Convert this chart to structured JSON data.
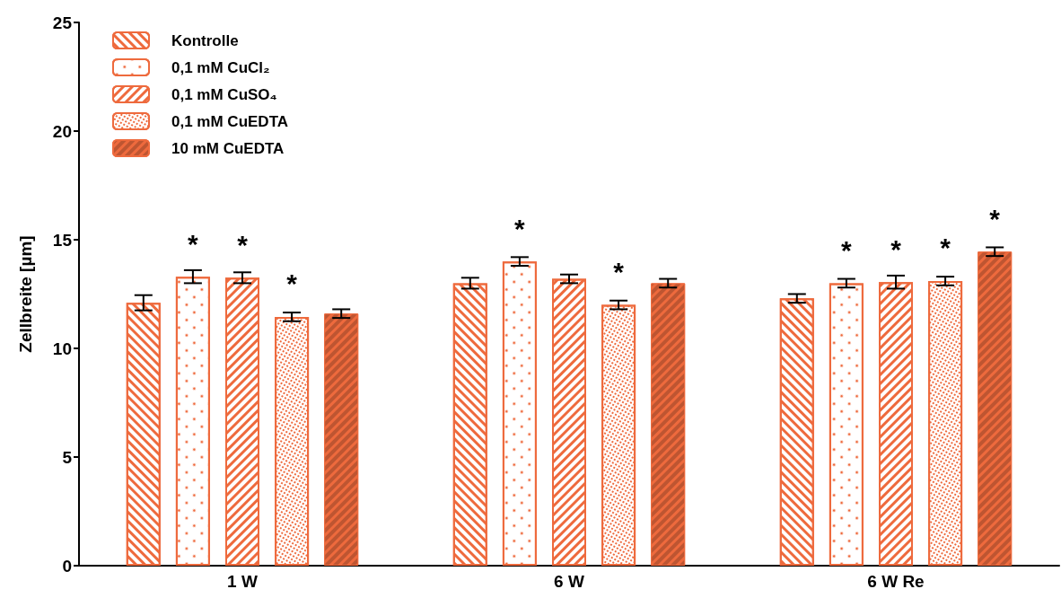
{
  "chart_data": {
    "type": "bar",
    "ylabel": "Zellbreite [µm]",
    "categories": [
      "1 W",
      "6 W",
      "6 W Re"
    ],
    "ylim": [
      0,
      25
    ],
    "yticks": [
      0,
      5,
      10,
      15,
      20,
      25
    ],
    "grid": false,
    "legend": "top left",
    "series": [
      {
        "name": "Kontrolle",
        "color": "#ee6a3d",
        "values": [
          12.1,
          13.0,
          12.3
        ],
        "errors": [
          0.35,
          0.25,
          0.2
        ],
        "value_labels": [
          null,
          null,
          null
        ]
      },
      {
        "name": "0,1 mM CuCl₂",
        "color": "#ee6a3d",
        "values": [
          13.3,
          14.0,
          13.0
        ],
        "errors": [
          0.3,
          0.2,
          0.2
        ],
        "value_labels": [
          "*",
          "*",
          "*"
        ]
      },
      {
        "name": "0,1 mM CuSO₄",
        "color": "#ee6a3d",
        "values": [
          13.25,
          13.2,
          13.05
        ],
        "errors": [
          0.25,
          0.2,
          0.3
        ],
        "value_labels": [
          "*",
          null,
          "*"
        ]
      },
      {
        "name": "0,1 mM CuEDTA",
        "color": "#ee6a3d",
        "values": [
          11.45,
          12.0,
          13.1
        ],
        "errors": [
          0.2,
          0.2,
          0.2
        ],
        "value_labels": [
          "*",
          "*",
          "*"
        ]
      },
      {
        "name": "10 mM CuEDTA",
        "color": "#ee6a3d",
        "values": [
          11.6,
          13.0,
          14.45
        ],
        "errors": [
          0.2,
          0.2,
          0.2
        ],
        "value_labels": [
          null,
          null,
          "*"
        ]
      }
    ]
  }
}
